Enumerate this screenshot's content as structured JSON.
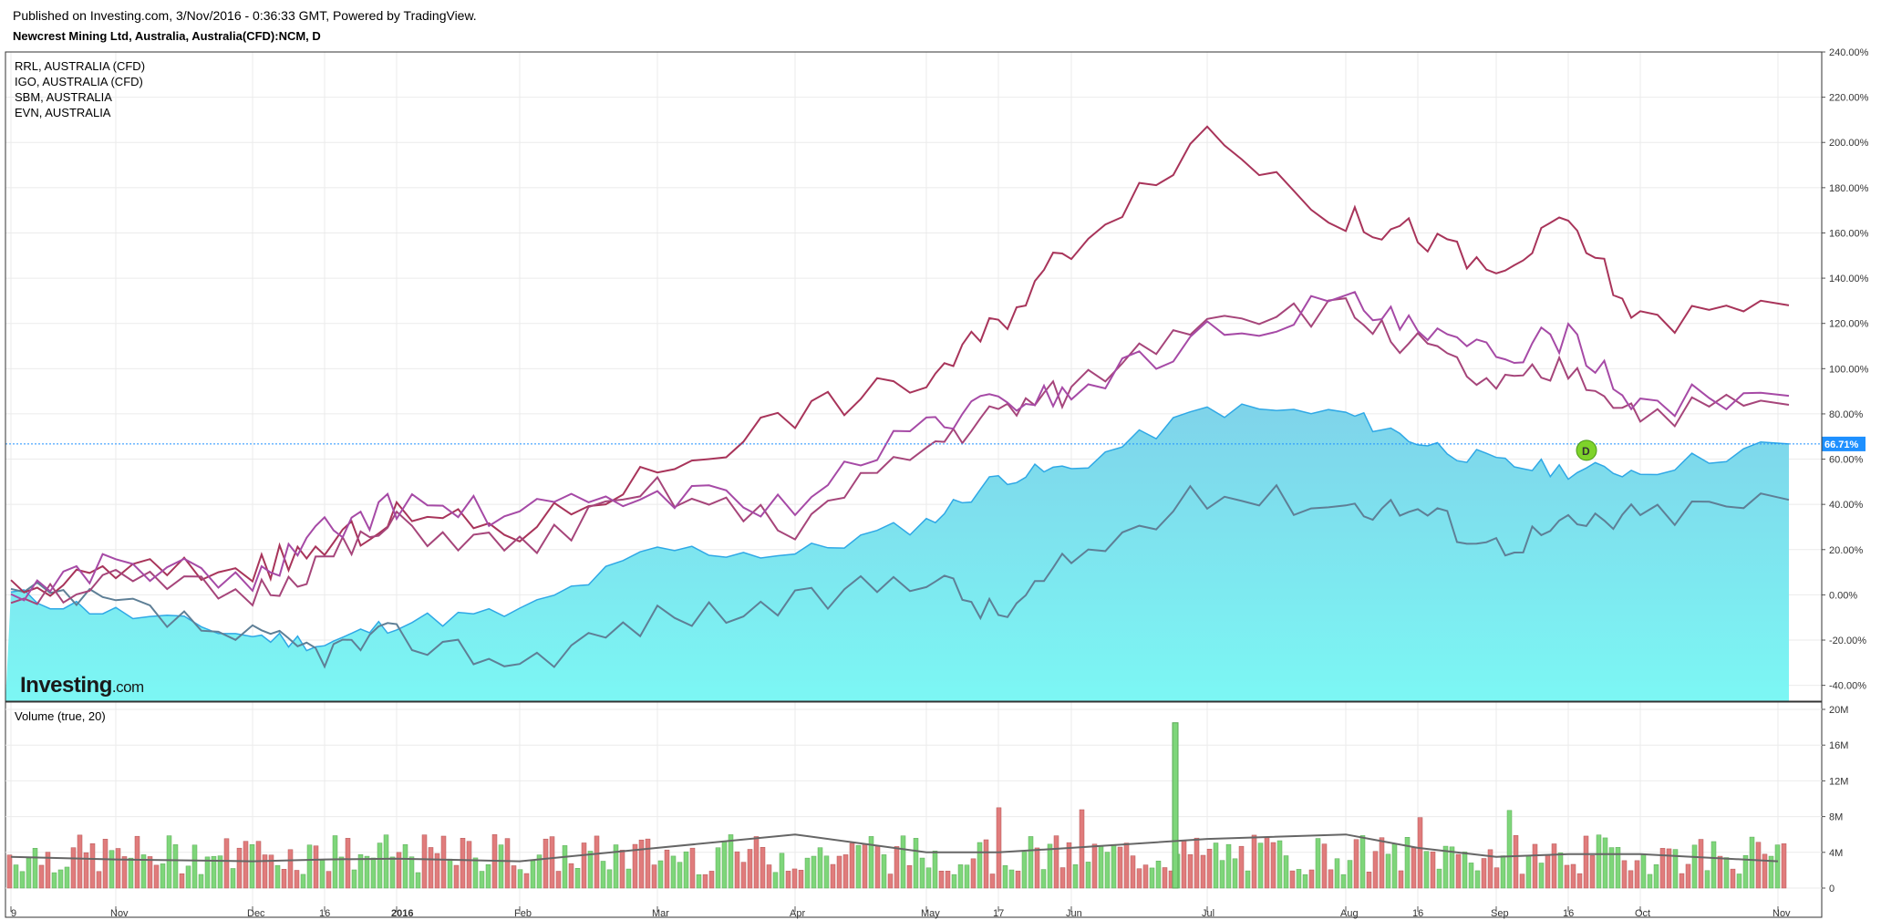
{
  "header": {
    "published": "Published on Investing.com, 3/Nov/2016 - 0:36:33 GMT, Powered by TradingView.",
    "instrument": "Newcrest Mining Ltd, Australia, Australia(CFD):NCM, D"
  },
  "logo": {
    "main": "Investing",
    "suffix": ".com"
  },
  "colors": {
    "area_line": "#2fa8e6",
    "area_fill_top": "#7fd3ea",
    "area_fill_bottom": "#7cf7f4",
    "series_colors": [
      "#a8345a",
      "#a6457a",
      "#a64aa6",
      "#5e7f96"
    ],
    "volume_up": "#7ed67a",
    "volume_down": "#e07c7c",
    "volume_ma": "#666666",
    "price_line": "#1e90ff",
    "marker": "#7ed32a"
  },
  "chart_data": [
    {
      "type": "line",
      "title": "Newcrest Mining Ltd, Australia, Australia(CFD):NCM, D",
      "y_unit": "percent",
      "ylim": [
        -47,
        240
      ],
      "y_ticks": [
        "-40.00%",
        "-20.00%",
        "0.00%",
        "20.00%",
        "40.00%",
        "60.00%",
        "80.00%",
        "100.00%",
        "120.00%",
        "140.00%",
        "160.00%",
        "180.00%",
        "200.00%",
        "220.00%",
        "240.00%"
      ],
      "x_tick_labels": [
        "9",
        "Nov",
        "Dec",
        "16",
        "2016",
        "Feb",
        "Mar",
        "Apr",
        "May",
        "17",
        "Jun",
        "Jul",
        "Aug",
        "16",
        "Sep",
        "16",
        "Oct",
        "Nov"
      ],
      "legend": [
        "RRL, AUSTRALIA (CFD)",
        "IGO, AUSTRALIA (CFD)",
        "SBM, AUSTRALIA",
        "EVN, AUSTRALIA"
      ],
      "last_value_label": "66.71%",
      "last_value": 66.71,
      "marker_label": "D",
      "x_points": [
        "Oct 9",
        "Nov",
        "Dec",
        "Dec 16",
        "Jan 2016",
        "Feb",
        "Mar",
        "Apr",
        "May",
        "May 17",
        "Jun",
        "Jul",
        "Aug",
        "Aug 16",
        "Sep",
        "Sep 16",
        "Oct",
        "Nov 2"
      ],
      "series": [
        {
          "values": [
            0,
            -8,
            -18,
            -22,
            -12,
            -8,
            20,
            18,
            32,
            52,
            56,
            82,
            80,
            68,
            58,
            55,
            55,
            66.71
          ]
        },
        {
          "values": [
            0,
            -5,
            -20,
            -25,
            -18,
            -30,
            -10,
            -5,
            10,
            -10,
            15,
            45,
            40,
            38,
            22,
            30,
            35,
            42
          ]
        },
        {
          "values": [
            0,
            10,
            12,
            20,
            35,
            28,
            55,
            80,
            95,
            120,
            155,
            205,
            165,
            160,
            140,
            165,
            120,
            128
          ]
        },
        {
          "values": [
            0,
            5,
            0,
            15,
            30,
            20,
            45,
            30,
            65,
            80,
            90,
            125,
            125,
            110,
            90,
            100,
            80,
            84
          ]
        },
        {
          "values": [
            0,
            15,
            5,
            28,
            40,
            35,
            45,
            40,
            75,
            85,
            90,
            115,
            130,
            115,
            105,
            115,
            85,
            88
          ]
        }
      ]
    },
    {
      "type": "bar",
      "title": "Volume (true, 20)",
      "y_ticks": [
        "0",
        "4M",
        "8M",
        "12M",
        "16M",
        "20M"
      ],
      "ylim": [
        0,
        20
      ],
      "y_unit": "M",
      "moving_average": [
        3.5,
        3.2,
        3.0,
        3.2,
        3.3,
        3.0,
        4.5,
        6.0,
        4.0,
        4.0,
        4.5,
        5.5,
        6.0,
        4.5,
        3.5,
        3.8,
        3.8,
        3.0
      ],
      "peak": {
        "label": "Jun",
        "value": 18.5
      }
    }
  ]
}
